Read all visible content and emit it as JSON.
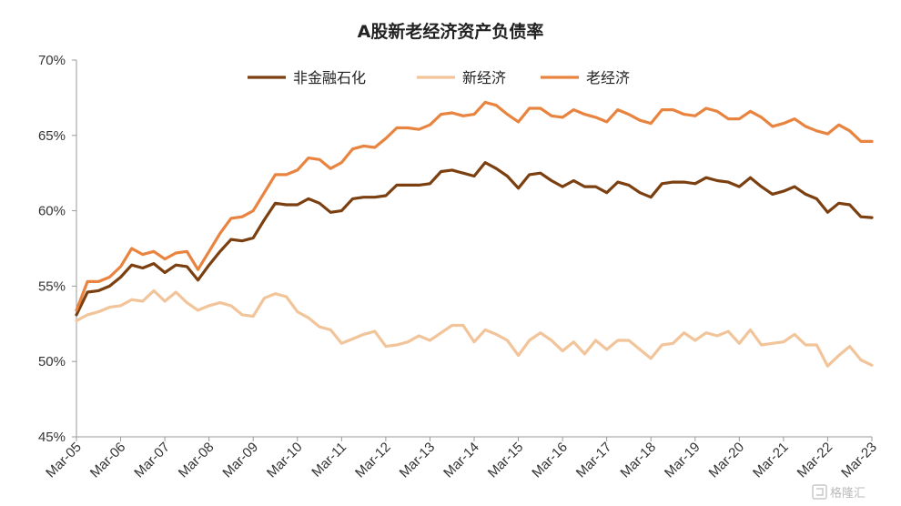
{
  "chart_data": {
    "type": "line",
    "title": "A股新老经济资产负债率",
    "ylim": [
      45,
      70
    ],
    "yticks": [
      45,
      50,
      55,
      60,
      65,
      70
    ],
    "ytick_labels": [
      "45%",
      "50%",
      "55%",
      "60%",
      "65%",
      "70%"
    ],
    "x_start": 2005,
    "x_end": 2023,
    "x_tick_labels": [
      "Mar-05",
      "Mar-06",
      "Mar-07",
      "Mar-08",
      "Mar-09",
      "Mar-10",
      "Mar-11",
      "Mar-12",
      "Mar-13",
      "Mar-14",
      "Mar-15",
      "Mar-16",
      "Mar-17",
      "Mar-18",
      "Mar-19",
      "Mar-20",
      "Mar-21",
      "Mar-22",
      "Mar-23"
    ],
    "legend_position": "top",
    "grid": false,
    "series": [
      {
        "name": "非金融石化",
        "color": "#7B3F10",
        "values": [
          53.1,
          54.6,
          54.7,
          55.0,
          55.6,
          56.4,
          56.2,
          56.5,
          55.9,
          56.4,
          56.3,
          55.4,
          56.4,
          57.3,
          58.1,
          58.0,
          58.2,
          59.4,
          60.5,
          60.4,
          60.4,
          60.8,
          60.5,
          59.9,
          60.0,
          60.8,
          60.9,
          60.9,
          61.0,
          61.7,
          61.7,
          61.7,
          61.8,
          62.6,
          62.7,
          62.5,
          62.3,
          63.2,
          62.8,
          62.3,
          61.5,
          62.4,
          62.5,
          62.0,
          61.6,
          62.0,
          61.6,
          61.6,
          61.2,
          61.9,
          61.7,
          61.2,
          60.9,
          61.8,
          61.9,
          61.9,
          61.8,
          62.2,
          62.0,
          61.9,
          61.6,
          62.2,
          61.6,
          61.1,
          61.3,
          61.6,
          61.1,
          60.8,
          59.9,
          60.5,
          60.4,
          59.6,
          59.55
        ]
      },
      {
        "name": "新经济",
        "color": "#F2C49A",
        "values": [
          52.7,
          53.1,
          53.3,
          53.6,
          53.7,
          54.1,
          54.0,
          54.7,
          54.0,
          54.6,
          53.9,
          53.4,
          53.7,
          53.9,
          53.7,
          53.1,
          53.0,
          54.2,
          54.5,
          54.3,
          53.3,
          52.9,
          52.3,
          52.1,
          51.2,
          51.5,
          51.8,
          52.0,
          51.0,
          51.1,
          51.3,
          51.7,
          51.4,
          51.9,
          52.4,
          52.4,
          51.3,
          52.1,
          51.8,
          51.4,
          50.4,
          51.4,
          51.9,
          51.4,
          50.7,
          51.3,
          50.5,
          51.4,
          50.8,
          51.4,
          51.4,
          50.8,
          50.2,
          51.1,
          51.2,
          51.9,
          51.4,
          51.9,
          51.7,
          52.0,
          51.2,
          52.1,
          51.1,
          51.2,
          51.3,
          51.8,
          51.1,
          51.1,
          49.7,
          50.4,
          51.0,
          50.1,
          49.75
        ]
      },
      {
        "name": "老经济",
        "color": "#E8843F",
        "values": [
          53.4,
          55.3,
          55.3,
          55.6,
          56.3,
          57.5,
          57.1,
          57.3,
          56.8,
          57.2,
          57.3,
          56.1,
          57.3,
          58.5,
          59.5,
          59.6,
          60.0,
          61.2,
          62.4,
          62.4,
          62.7,
          63.5,
          63.4,
          62.8,
          63.2,
          64.1,
          64.3,
          64.2,
          64.8,
          65.5,
          65.5,
          65.4,
          65.7,
          66.4,
          66.5,
          66.3,
          66.4,
          67.2,
          67.0,
          66.4,
          65.9,
          66.8,
          66.8,
          66.3,
          66.2,
          66.7,
          66.4,
          66.2,
          65.9,
          66.7,
          66.4,
          66.0,
          65.8,
          66.7,
          66.7,
          66.4,
          66.3,
          66.8,
          66.6,
          66.1,
          66.1,
          66.6,
          66.2,
          65.6,
          65.8,
          66.1,
          65.6,
          65.3,
          65.1,
          65.7,
          65.3,
          64.6,
          64.6
        ]
      }
    ]
  },
  "watermark": {
    "icon": "gelonghui-logo-icon",
    "text": "格隆汇"
  }
}
